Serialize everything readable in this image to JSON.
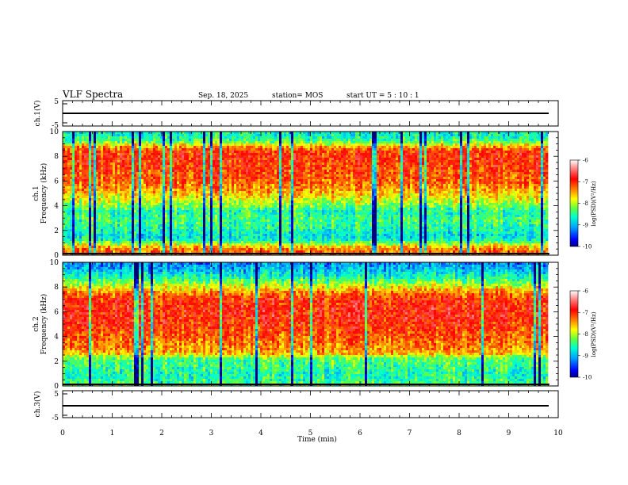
{
  "header": {
    "title": "VLF Spectra",
    "date": "Sep. 18, 2025",
    "station": "station= MOS",
    "start_ut": "start  UT =   5  : 10 : 1"
  },
  "chart_data": [
    {
      "type": "line",
      "name": "ch1-voltage",
      "ylabel": "ch.1(V)",
      "ylim": [
        -5,
        5
      ],
      "yticks": [
        "5",
        "-5"
      ],
      "xlim": [
        0,
        10
      ],
      "x": [
        0,
        9.82
      ],
      "values": [
        0,
        0
      ]
    },
    {
      "type": "heatmap",
      "name": "ch1-spectrogram",
      "ylabel_line1": "ch.1",
      "ylabel_line2": "Frequency (kHz)",
      "ylim": [
        0,
        10
      ],
      "yticks": [
        "0",
        "2",
        "4",
        "6",
        "8",
        "10"
      ],
      "xlim": [
        0,
        10
      ],
      "x_data_end": 9.82,
      "profile_khz": [
        0,
        0.4,
        0.8,
        1.2,
        1.6,
        2.0,
        2.5,
        3.0,
        3.5,
        4.0,
        4.5,
        5.0,
        6.0,
        7.0,
        8.0,
        8.5,
        8.9,
        9.2,
        9.6,
        10.0
      ],
      "profile_log_psd": [
        -7.4,
        -7.2,
        -7.8,
        -8.6,
        -8.8,
        -8.6,
        -8.5,
        -8.4,
        -8.6,
        -8.2,
        -7.9,
        -7.6,
        -7.2,
        -7.1,
        -7.0,
        -7.1,
        -7.7,
        -8.4,
        -8.6,
        -8.7
      ],
      "colorbar": {
        "min": -10,
        "max": -6,
        "ticks": [
          "-6",
          "-7",
          "-8",
          "-9",
          "-10"
        ],
        "label": "log(PSD)(V²/Hz)"
      }
    },
    {
      "type": "heatmap",
      "name": "ch2-spectrogram",
      "ylabel_line1": "ch.2",
      "ylabel_line2": "Frequency (kHz)",
      "ylim": [
        0,
        10
      ],
      "yticks": [
        "0",
        "2",
        "4",
        "6",
        "8",
        "10"
      ],
      "xlim": [
        0,
        10
      ],
      "x_data_end": 9.82,
      "profile_khz": [
        0,
        0.3,
        0.8,
        1.3,
        1.8,
        2.2,
        2.6,
        3.0,
        3.5,
        4.0,
        5.0,
        5.5,
        6.0,
        7.0,
        7.5,
        8.0,
        8.5,
        9.0,
        9.5,
        10.0
      ],
      "profile_log_psd": [
        -8.2,
        -8.4,
        -8.6,
        -8.5,
        -8.4,
        -8.3,
        -7.6,
        -7.4,
        -7.3,
        -7.2,
        -7.0,
        -6.9,
        -6.9,
        -7.0,
        -7.3,
        -7.8,
        -8.3,
        -8.7,
        -9.0,
        -9.2
      ],
      "colorbar": {
        "min": -10,
        "max": -6,
        "ticks": [
          "-6",
          "-7",
          "-8",
          "-9",
          "-10"
        ],
        "label": "log(PSD)(V²/Hz)"
      }
    },
    {
      "type": "line",
      "name": "ch3-voltage",
      "ylabel": "ch.3(V)",
      "ylim": [
        -5,
        5
      ],
      "yticks": [
        "5",
        "-5"
      ],
      "xlim": [
        0,
        10
      ],
      "x": [
        0,
        9.82
      ],
      "values": [
        0,
        0
      ]
    }
  ],
  "x_axis": {
    "label": "Time (min)",
    "ticks": [
      "0",
      "1",
      "2",
      "3",
      "4",
      "5",
      "6",
      "7",
      "8",
      "9",
      "10"
    ]
  },
  "colors": {
    "scale": [
      "#00007f",
      "#0000ff",
      "#00a0ff",
      "#00ffd0",
      "#60ff40",
      "#ffff00",
      "#ff8000",
      "#ff0000",
      "#ff8080",
      "#ffffff"
    ]
  }
}
